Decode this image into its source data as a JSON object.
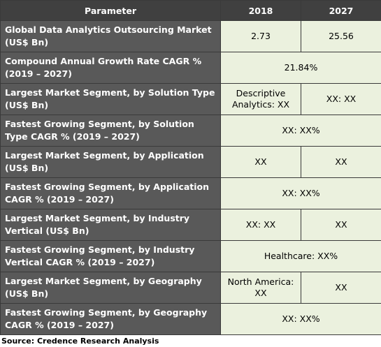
{
  "table": {
    "header": [
      "Parameter",
      "2018",
      "2027"
    ],
    "rows": [
      {
        "label": "Global Data Analytics Outsourcing Market (US$ Bn)",
        "values": [
          "2.73",
          "25.56"
        ]
      },
      {
        "label": "Compound Annual Growth Rate CAGR % (2019 – 2027)",
        "values": [
          "21.84%"
        ]
      },
      {
        "label": "Largest Market Segment, by Solution Type (US$ Bn)",
        "values": [
          "Descriptive Analytics: XX",
          "XX: XX"
        ]
      },
      {
        "label": "Fastest Growing Segment, by Solution Type CAGR % (2019 – 2027)",
        "values": [
          "XX: XX%"
        ]
      },
      {
        "label": "Largest Market Segment, by Application (US$ Bn)",
        "values": [
          "XX",
          "XX"
        ]
      },
      {
        "label": "Fastest Growing Segment, by Application CAGR % (2019 – 2027)",
        "values": [
          "XX: XX%"
        ]
      },
      {
        "label": "Largest Market Segment, by Industry Vertical (US$ Bn)",
        "values": [
          "XX: XX",
          "XX"
        ]
      },
      {
        "label": "Fastest Growing Segment, by Industry Vertical CAGR % (2019 – 2027)",
        "values": [
          "Healthcare: XX%"
        ]
      },
      {
        "label": "Largest Market Segment, by Geography (US$ Bn)",
        "values": [
          "North America: XX",
          "XX"
        ]
      },
      {
        "label": "Fastest Growing Segment, by Geography CAGR % (2019 – 2027)",
        "values": [
          "XX: XX%"
        ]
      }
    ]
  },
  "source": "Source: Credence Research Analysis"
}
